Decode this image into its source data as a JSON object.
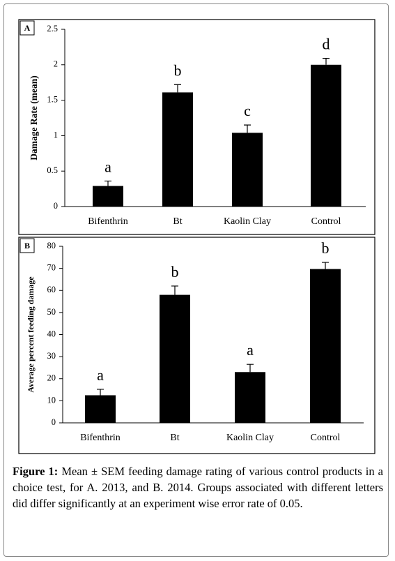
{
  "chart_data": [
    {
      "type": "bar",
      "panel": "A",
      "y_label": "Damage Rate (mean)",
      "categories": [
        "Bifenthrin",
        "Bt",
        "Kaolin Clay",
        "Control"
      ],
      "values": [
        0.29,
        1.61,
        1.04,
        2.0
      ],
      "errors": [
        0.07,
        0.11,
        0.11,
        0.09
      ],
      "letters": [
        "a",
        "b",
        "c",
        "d"
      ],
      "color": "#000000",
      "ylim": [
        0,
        2.5
      ],
      "yticks": [
        0,
        0.5,
        1,
        1.5,
        2,
        2.5
      ]
    },
    {
      "type": "bar",
      "panel": "B",
      "y_label": "Average percent feeding damage",
      "categories": [
        "Bifenthrin",
        "Bt",
        "Kaolin Clay",
        "Control"
      ],
      "values": [
        12.5,
        58,
        23,
        69.7
      ],
      "errors": [
        2.7,
        4,
        3.5,
        3
      ],
      "letters": [
        "a",
        "b",
        "a",
        "b"
      ],
      "color": "#000000",
      "ylim": [
        0,
        80
      ],
      "yticks": [
        0,
        10,
        20,
        30,
        40,
        50,
        60,
        70,
        80
      ]
    }
  ],
  "caption": {
    "label": "Figure 1:",
    "text": "Mean ± SEM feeding damage rating of various control products in a choice test, for A. 2013, and B. 2014. Groups associated with different letters did differ significantly at an experiment wise error rate of 0.05."
  }
}
